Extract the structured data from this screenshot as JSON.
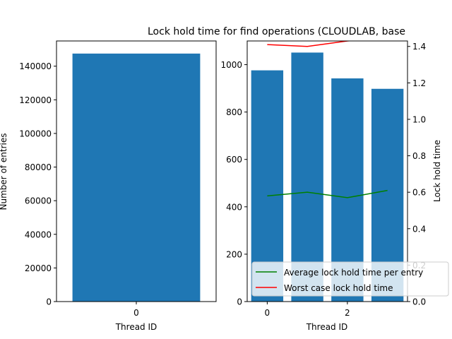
{
  "chart_data": [
    {
      "type": "bar",
      "title": "",
      "xlabel": "Thread ID",
      "ylabel": "Number of entries",
      "x": [
        0
      ],
      "values": [
        147500
      ],
      "xlim": [
        -0.5,
        0.5
      ],
      "ylim": [
        0,
        155000
      ],
      "x_ticks": [
        0
      ],
      "y_ticks": [
        0,
        20000,
        40000,
        60000,
        80000,
        100000,
        120000,
        140000
      ],
      "bar_color": "#1f77b4",
      "grid": false
    },
    {
      "type": "bar+line",
      "title": "Lock hold time for find operations (CLOUDLAB, base",
      "xlabel": "Thread ID",
      "ylabel": "",
      "y2label": "Lock hold time",
      "x": [
        0,
        1,
        2,
        3
      ],
      "bar_values": [
        976,
        1051,
        942,
        898
      ],
      "bar_color": "#1f77b4",
      "xlim": [
        -0.5,
        3.5
      ],
      "ylim": [
        0,
        1100
      ],
      "y2lim": [
        0,
        1.43
      ],
      "x_ticks": [
        0,
        2
      ],
      "y_ticks": [
        0,
        200,
        400,
        600,
        800,
        1000
      ],
      "y2_ticks": [
        "0.0",
        "0.2",
        "0.4",
        "0.6",
        "0.8",
        "1.0",
        "1.2",
        "1.4"
      ],
      "series": [
        {
          "name": "Average lock hold time per entry",
          "axis": "right",
          "color": "#008000",
          "values": [
            0.58,
            0.6,
            0.57,
            0.61
          ]
        },
        {
          "name": "Worst case lock hold time",
          "axis": "right",
          "color": "#ff0000",
          "values": [
            1.41,
            1.4,
            1.43,
            1.45
          ]
        }
      ],
      "legend_position": "lower right",
      "grid": false
    }
  ]
}
